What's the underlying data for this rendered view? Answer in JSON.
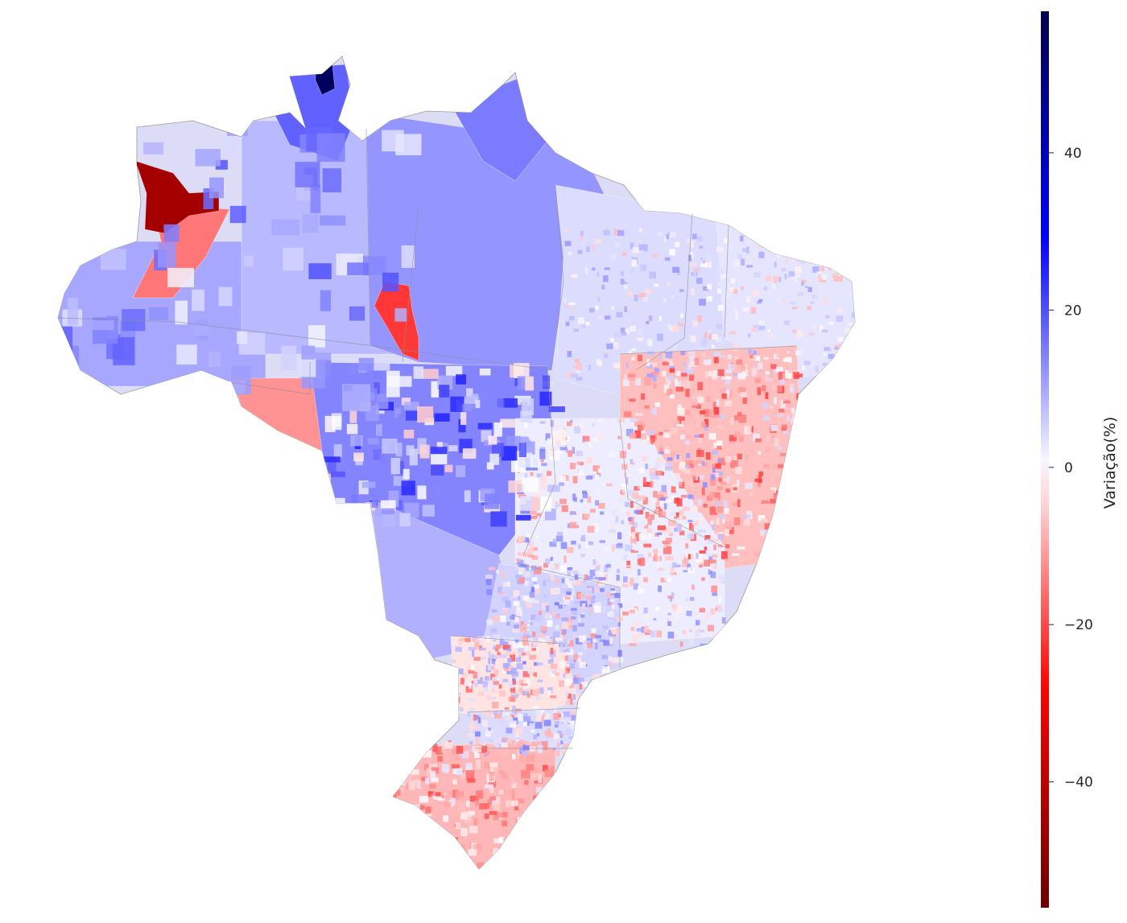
{
  "colorbar": {
    "label": "Variação(%)",
    "range": [
      -56,
      58
    ],
    "ticks": [
      {
        "value": 40,
        "label": "40"
      },
      {
        "value": 20,
        "label": "20"
      },
      {
        "value": 0,
        "label": "0"
      },
      {
        "value": -20,
        "label": "−20"
      },
      {
        "value": -40,
        "label": "−40"
      }
    ],
    "colormap": [
      "#6b0000",
      "#ff0000",
      "#ffffff",
      "#0000ff",
      "#00004d"
    ]
  },
  "map": {
    "subject": "Brazil municipalities choropleth",
    "regions": [
      {
        "name": "norte-oeste",
        "tone": 10
      },
      {
        "name": "far-northwest-dark",
        "tone": -45
      },
      {
        "name": "western-amazon-red",
        "tone": -15
      },
      {
        "name": "central-amazon",
        "tone": 8
      },
      {
        "name": "para-red",
        "tone": -22
      },
      {
        "name": "para",
        "tone": 12
      },
      {
        "name": "roraima",
        "tone": 18
      },
      {
        "name": "roraima-dark",
        "tone": 55
      },
      {
        "name": "amapa",
        "tone": 15
      },
      {
        "name": "rondonia",
        "tone": -12
      },
      {
        "name": "mato-grosso",
        "tone": 14
      },
      {
        "name": "mato-grosso-do-sul",
        "tone": 9
      },
      {
        "name": "maranhao-piaui",
        "tone": 4
      },
      {
        "name": "northeast-coast",
        "tone": 3
      },
      {
        "name": "bahia",
        "tone": -7
      },
      {
        "name": "goias-minas",
        "tone": 2
      },
      {
        "name": "sao-paulo",
        "tone": 5
      },
      {
        "name": "parana",
        "tone": -3
      },
      {
        "name": "santa-catarina",
        "tone": 4
      },
      {
        "name": "rio-grande-do-sul",
        "tone": -8
      }
    ]
  }
}
